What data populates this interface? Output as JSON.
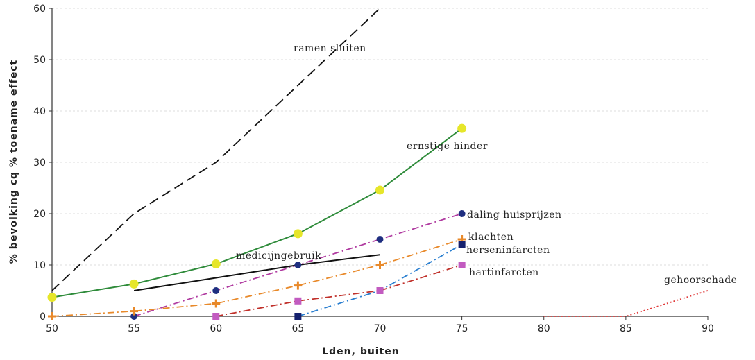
{
  "chart_data": {
    "type": "line",
    "xlabel": "Lden, buiten",
    "ylabel": "% bevolking cq % toename effect",
    "xlim": [
      50,
      90
    ],
    "ylim": [
      0,
      60
    ],
    "xticks": [
      "50",
      "55",
      "60",
      "65",
      "70",
      "75",
      "80",
      "85",
      "90"
    ],
    "yticks": [
      "0",
      "10",
      "20",
      "30",
      "40",
      "50",
      "60"
    ],
    "grid": "horizontal dashed",
    "legend": "inline labels",
    "series": [
      {
        "name": "ramen sluiten",
        "color": "#111111",
        "dash": "14 7",
        "marker": "none",
        "x": [
          50,
          55,
          60,
          65,
          70
        ],
        "y": [
          5,
          20,
          30,
          45,
          60
        ]
      },
      {
        "name": "ernstige hinder",
        "color": "#2e8b3a",
        "dash": "",
        "marker": "circle",
        "markerColor": "#e6e62a",
        "x": [
          50,
          55,
          60,
          65,
          70,
          75
        ],
        "y": [
          3.7,
          6.3,
          10.2,
          16.1,
          24.6,
          36.6
        ]
      },
      {
        "name": "daling huisprijzen",
        "color": "#b03aa0",
        "dash": "10 4 2 4",
        "marker": "circle",
        "markerColor": "#1f2f80",
        "x": [
          55,
          60,
          65,
          70,
          75
        ],
        "y": [
          0,
          5,
          10,
          15,
          20
        ]
      },
      {
        "name": "medicijngebruik",
        "color": "#111111",
        "dash": "",
        "marker": "none",
        "x": [
          55,
          60,
          65,
          70
        ],
        "y": [
          5,
          7.5,
          10,
          12
        ]
      },
      {
        "name": "klachten",
        "color": "#e8892a",
        "dash": "10 4 2 4",
        "marker": "plus",
        "markerColor": "#e8892a",
        "x": [
          50,
          55,
          60,
          65,
          70,
          75
        ],
        "y": [
          0,
          1,
          2.5,
          6,
          10,
          15
        ]
      },
      {
        "name": "herseninfarcten",
        "color": "#2a7fd0",
        "dash": "10 4 2 4",
        "marker": "square",
        "markerColor": "#15206e",
        "x": [
          65,
          70,
          75
        ],
        "y": [
          0,
          5,
          14
        ]
      },
      {
        "name": "hartinfarcten",
        "color": "#c0302a",
        "dash": "10 4 2 4",
        "marker": "square",
        "markerColor": "#c25bc0",
        "x": [
          60,
          65,
          70,
          75
        ],
        "y": [
          0,
          3,
          5,
          10
        ]
      },
      {
        "name": "gehoorschade",
        "color": "#e03a3a",
        "dash": "2 3",
        "marker": "none",
        "x": [
          80,
          85,
          90
        ],
        "y": [
          0,
          0,
          5
        ]
      }
    ]
  }
}
